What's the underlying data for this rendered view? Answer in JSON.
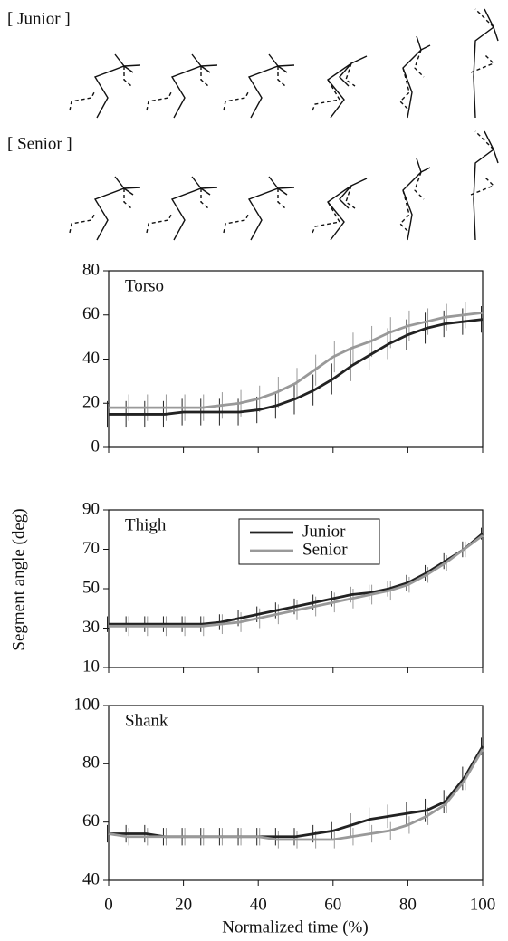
{
  "stick_figures": {
    "labels": [
      "[ Junior ]",
      "[ Senior ]"
    ]
  },
  "ylabel": "Segment angle  (deg)",
  "xlabel": "Normalized time (%)",
  "chart_data": [
    {
      "type": "line",
      "title": "Torso",
      "x": [
        0,
        5,
        10,
        15,
        20,
        25,
        30,
        35,
        40,
        45,
        50,
        55,
        60,
        65,
        70,
        75,
        80,
        85,
        90,
        95,
        100
      ],
      "xlim": [
        0,
        100
      ],
      "xticks": [
        0,
        20,
        40,
        60,
        80,
        100
      ],
      "ylim": [
        0,
        80
      ],
      "yticks": [
        0,
        20,
        40,
        60,
        80
      ],
      "series": [
        {
          "name": "Junior",
          "color": "#222222",
          "values": [
            15,
            15,
            15,
            15,
            16,
            16,
            16,
            16,
            17,
            19,
            22,
            26,
            31,
            37,
            42,
            47,
            51,
            54,
            56,
            57,
            58
          ],
          "errors": [
            6,
            6,
            6,
            6,
            6,
            6,
            6,
            6,
            6,
            6,
            7,
            7,
            7,
            7,
            7,
            7,
            7,
            7,
            6,
            6,
            6
          ]
        },
        {
          "name": "Senior",
          "color": "#999999",
          "values": [
            18,
            18,
            18,
            18,
            18,
            18,
            19,
            20,
            22,
            25,
            29,
            35,
            41,
            45,
            48,
            52,
            55,
            57,
            59,
            60,
            61
          ],
          "errors": [
            6,
            6,
            6,
            6,
            6,
            6,
            6,
            6,
            6,
            7,
            7,
            7,
            7,
            7,
            7,
            7,
            7,
            6,
            6,
            6,
            6
          ]
        }
      ]
    },
    {
      "type": "line",
      "title": "Thigh",
      "x": [
        0,
        5,
        10,
        15,
        20,
        25,
        30,
        35,
        40,
        45,
        50,
        55,
        60,
        65,
        70,
        75,
        80,
        85,
        90,
        95,
        100
      ],
      "xlim": [
        0,
        100
      ],
      "xticks": [
        0,
        20,
        40,
        60,
        80,
        100
      ],
      "ylim": [
        10,
        90
      ],
      "yticks": [
        10,
        30,
        50,
        70,
        90
      ],
      "legend": "upper center",
      "series": [
        {
          "name": "Junior",
          "color": "#222222",
          "values": [
            32,
            32,
            32,
            32,
            32,
            32,
            33,
            35,
            37,
            39,
            41,
            43,
            45,
            47,
            48,
            50,
            53,
            58,
            64,
            70,
            78
          ],
          "errors": [
            4,
            4,
            4,
            4,
            4,
            4,
            4,
            4,
            4,
            4,
            4,
            4,
            4,
            4,
            4,
            4,
            4,
            4,
            4,
            4,
            3
          ]
        },
        {
          "name": "Senior",
          "color": "#999999",
          "values": [
            31,
            31,
            31,
            31,
            31,
            31,
            32,
            33,
            35,
            37,
            39,
            41,
            43,
            45,
            47,
            49,
            52,
            57,
            63,
            70,
            77
          ],
          "errors": [
            5,
            5,
            5,
            5,
            5,
            5,
            5,
            5,
            5,
            5,
            5,
            5,
            5,
            5,
            5,
            5,
            4,
            4,
            4,
            4,
            3
          ]
        }
      ]
    },
    {
      "type": "line",
      "title": "Shank",
      "x": [
        0,
        5,
        10,
        15,
        20,
        25,
        30,
        35,
        40,
        45,
        50,
        55,
        60,
        65,
        70,
        75,
        80,
        85,
        90,
        95,
        100
      ],
      "xlim": [
        0,
        100
      ],
      "xticks": [
        0,
        20,
        40,
        60,
        80,
        100
      ],
      "ylim": [
        40,
        100
      ],
      "yticks": [
        40,
        60,
        80,
        100
      ],
      "series": [
        {
          "name": "Junior",
          "color": "#222222",
          "values": [
            56,
            56,
            56,
            55,
            55,
            55,
            55,
            55,
            55,
            55,
            55,
            56,
            57,
            59,
            61,
            62,
            63,
            64,
            67,
            75,
            86
          ],
          "errors": [
            3,
            3,
            3,
            3,
            3,
            3,
            3,
            3,
            3,
            3,
            3,
            3,
            3,
            4,
            4,
            4,
            4,
            4,
            4,
            4,
            3
          ]
        },
        {
          "name": "Senior",
          "color": "#999999",
          "values": [
            56,
            55,
            55,
            55,
            55,
            55,
            55,
            55,
            55,
            54,
            54,
            54,
            54,
            55,
            56,
            57,
            59,
            62,
            66,
            74,
            85
          ],
          "errors": [
            3,
            3,
            3,
            3,
            3,
            3,
            3,
            3,
            3,
            3,
            3,
            3,
            3,
            3,
            3,
            3,
            3,
            3,
            3,
            3,
            3
          ]
        }
      ]
    }
  ]
}
